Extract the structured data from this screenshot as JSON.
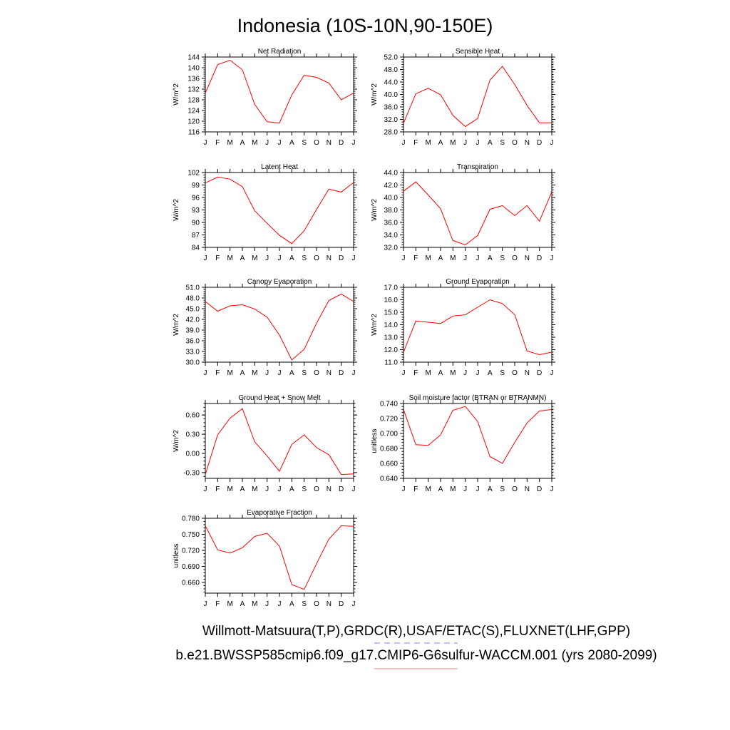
{
  "title": "Indonesia (10S-10N,90-150E)",
  "footer": {
    "observations": "Willmott-Matsuura(T,P),GRDC(R),USAF/ETAC(S),FLUXNET(LHF,GPP)",
    "case": "b.e21.BWSSP585cmip6.f09_g17.CMIP6-G6sulfur-WACCM.001 (yrs 2080-2099)",
    "obs_line_color": "#8080ff",
    "case_line_color": "#ff8080"
  },
  "line_color": "#ff0000",
  "chart_data": [
    {
      "type": "line",
      "title": "Net Radiation",
      "ylabel": "W/m^2",
      "categories": [
        "J",
        "F",
        "M",
        "A",
        "M",
        "J",
        "J",
        "A",
        "S",
        "O",
        "N",
        "D",
        "J"
      ],
      "ylim": [
        116,
        144
      ],
      "yticks": [
        "116",
        "120",
        "124",
        "128",
        "132",
        "136",
        "140",
        "144"
      ],
      "ytick_values": [
        116,
        120,
        124,
        128,
        132,
        136,
        140,
        144
      ],
      "values": [
        130.5,
        141.2,
        142.8,
        139.2,
        126.3,
        119.8,
        119.3,
        129.8,
        137.2,
        136.4,
        134.3,
        128.0,
        130.5
      ]
    },
    {
      "type": "line",
      "title": "Sensible Heat",
      "ylabel": "W/m^2",
      "categories": [
        "J",
        "F",
        "M",
        "A",
        "M",
        "J",
        "J",
        "A",
        "S",
        "O",
        "N",
        "D",
        "J"
      ],
      "ylim": [
        28,
        52
      ],
      "yticks": [
        "28.0",
        "32.0",
        "36.0",
        "40.0",
        "44.0",
        "48.0",
        "52.0"
      ],
      "ytick_values": [
        28,
        32,
        36,
        40,
        44,
        48,
        52
      ],
      "values": [
        30.8,
        40.2,
        42.0,
        39.9,
        33.3,
        29.7,
        32.3,
        44.6,
        49.0,
        43.2,
        36.5,
        30.9,
        30.9
      ]
    },
    {
      "type": "line",
      "title": "Latent Heat",
      "ylabel": "W/m^2",
      "categories": [
        "J",
        "F",
        "M",
        "A",
        "M",
        "J",
        "J",
        "A",
        "S",
        "O",
        "N",
        "D",
        "J"
      ],
      "ylim": [
        84,
        102
      ],
      "yticks": [
        "84",
        "87",
        "90",
        "93",
        "96",
        "99",
        "102"
      ],
      "ytick_values": [
        84,
        87,
        90,
        93,
        96,
        99,
        102
      ],
      "values": [
        99.5,
        100.9,
        100.4,
        98.6,
        92.8,
        89.8,
        86.9,
        84.9,
        88.0,
        93.1,
        98.0,
        97.3,
        99.6
      ]
    },
    {
      "type": "line",
      "title": "Transpiration",
      "ylabel": "W/m^2",
      "categories": [
        "J",
        "F",
        "M",
        "A",
        "M",
        "J",
        "J",
        "A",
        "S",
        "O",
        "N",
        "D",
        "J"
      ],
      "ylim": [
        32,
        44
      ],
      "yticks": [
        "32.0",
        "34.0",
        "36.0",
        "38.0",
        "40.0",
        "42.0",
        "44.0"
      ],
      "ytick_values": [
        32,
        34,
        36,
        38,
        40,
        42,
        44
      ],
      "values": [
        41.0,
        42.5,
        40.4,
        38.2,
        33.1,
        32.4,
        33.9,
        38.1,
        38.7,
        37.1,
        38.7,
        36.2,
        40.9
      ]
    },
    {
      "type": "line",
      "title": "Canopy Evaporation",
      "ylabel": "W/m^2",
      "categories": [
        "J",
        "F",
        "M",
        "A",
        "M",
        "J",
        "J",
        "A",
        "S",
        "O",
        "N",
        "D",
        "J"
      ],
      "ylim": [
        30,
        51
      ],
      "yticks": [
        "30.0",
        "33.0",
        "36.0",
        "39.0",
        "42.0",
        "45.0",
        "48.0",
        "51.0"
      ],
      "ytick_values": [
        30,
        33,
        36,
        39,
        42,
        45,
        48,
        51
      ],
      "values": [
        47.0,
        44.3,
        45.8,
        46.1,
        44.9,
        42.6,
        37.6,
        30.6,
        33.6,
        40.9,
        47.3,
        49.1,
        47.0
      ]
    },
    {
      "type": "line",
      "title": "Ground Evaporation",
      "ylabel": "W/m^2",
      "categories": [
        "J",
        "F",
        "M",
        "A",
        "M",
        "J",
        "J",
        "A",
        "S",
        "O",
        "N",
        "D",
        "J"
      ],
      "ylim": [
        11,
        17
      ],
      "yticks": [
        "11.0",
        "12.0",
        "13.0",
        "14.0",
        "15.0",
        "16.0",
        "17.0"
      ],
      "ytick_values": [
        11,
        12,
        13,
        14,
        15,
        16,
        17
      ],
      "values": [
        11.8,
        14.3,
        14.2,
        14.1,
        14.7,
        14.8,
        15.4,
        16.0,
        15.7,
        14.8,
        11.9,
        11.6,
        11.8
      ]
    },
    {
      "type": "line",
      "title": "Ground Heat + Snow Melt",
      "ylabel": "W/m^2",
      "categories": [
        "J",
        "F",
        "M",
        "A",
        "M",
        "J",
        "J",
        "A",
        "S",
        "O",
        "N",
        "D",
        "J"
      ],
      "ylim": [
        -0.39,
        0.78
      ],
      "yticks": [
        "-0.30",
        "0.00",
        "0.30",
        "0.60"
      ],
      "ytick_values": [
        -0.3,
        0.0,
        0.3,
        0.6
      ],
      "values": [
        -0.33,
        0.29,
        0.55,
        0.7,
        0.18,
        -0.04,
        -0.28,
        0.14,
        0.29,
        0.09,
        -0.02,
        -0.33,
        -0.32
      ]
    },
    {
      "type": "line",
      "title": "Soil moisture factor (BTRAN or BTRANMN)",
      "ylabel": "unitless",
      "categories": [
        "J",
        "F",
        "M",
        "A",
        "M",
        "J",
        "J",
        "A",
        "S",
        "O",
        "N",
        "D",
        "J"
      ],
      "ylim": [
        0.64,
        0.74
      ],
      "yticks": [
        "0.640",
        "0.660",
        "0.680",
        "0.700",
        "0.720",
        "0.740"
      ],
      "ytick_values": [
        0.64,
        0.66,
        0.68,
        0.7,
        0.72,
        0.74
      ],
      "values": [
        0.732,
        0.685,
        0.684,
        0.698,
        0.731,
        0.736,
        0.716,
        0.669,
        0.66,
        0.688,
        0.714,
        0.73,
        0.732
      ]
    },
    {
      "type": "line",
      "title": "Evaporative Fraction",
      "ylabel": "unitless",
      "categories": [
        "J",
        "F",
        "M",
        "A",
        "M",
        "J",
        "J",
        "A",
        "S",
        "O",
        "N",
        "D",
        "J"
      ],
      "ylim": [
        0.64,
        0.78
      ],
      "yticks": [
        "0.660",
        "0.690",
        "0.720",
        "0.750",
        "0.780"
      ],
      "ytick_values": [
        0.66,
        0.69,
        0.72,
        0.75,
        0.78
      ],
      "values": [
        0.766,
        0.721,
        0.715,
        0.725,
        0.746,
        0.752,
        0.728,
        0.656,
        0.647,
        0.695,
        0.741,
        0.766,
        0.765
      ]
    }
  ]
}
